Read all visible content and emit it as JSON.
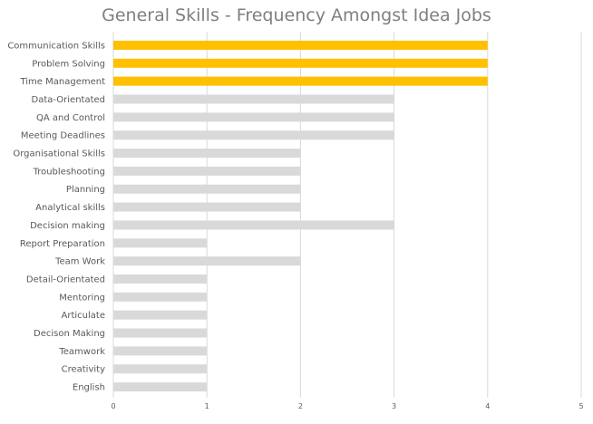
{
  "chart_data": {
    "type": "bar",
    "orientation": "horizontal",
    "title": "General Skills - Frequency Amongst Idea Jobs",
    "categories": [
      "Communication Skills",
      "Problem Solving",
      "Time Management",
      "Data-Orientated",
      "QA and Control",
      "Meeting Deadlines",
      "Organisational Skills",
      "Troubleshooting",
      "Planning",
      "Analytical skills",
      "Decision making",
      "Report Preparation",
      "Team Work",
      "Detail-Orientated",
      "Mentoring",
      "Articulate",
      "Decison Making",
      "Teamwork",
      "Creativity",
      "English"
    ],
    "values": [
      4,
      4,
      4,
      3,
      3,
      3,
      2,
      2,
      2,
      2,
      3,
      1,
      2,
      1,
      1,
      1,
      1,
      1,
      1,
      1
    ],
    "xlim": [
      0,
      5
    ],
    "xticks": [
      "0",
      "1",
      "2",
      "3",
      "4",
      "5"
    ],
    "xlabel": "",
    "ylabel": "",
    "grid": true,
    "legend": "none",
    "colors": {
      "highlight": "#FFC000",
      "default": "#D9D9D9",
      "grid": "#D9D9D9",
      "text": "#595959",
      "title": "#7F7F7F"
    },
    "highlighted_categories": [
      "Communication Skills",
      "Problem Solving",
      "Time Management"
    ]
  }
}
